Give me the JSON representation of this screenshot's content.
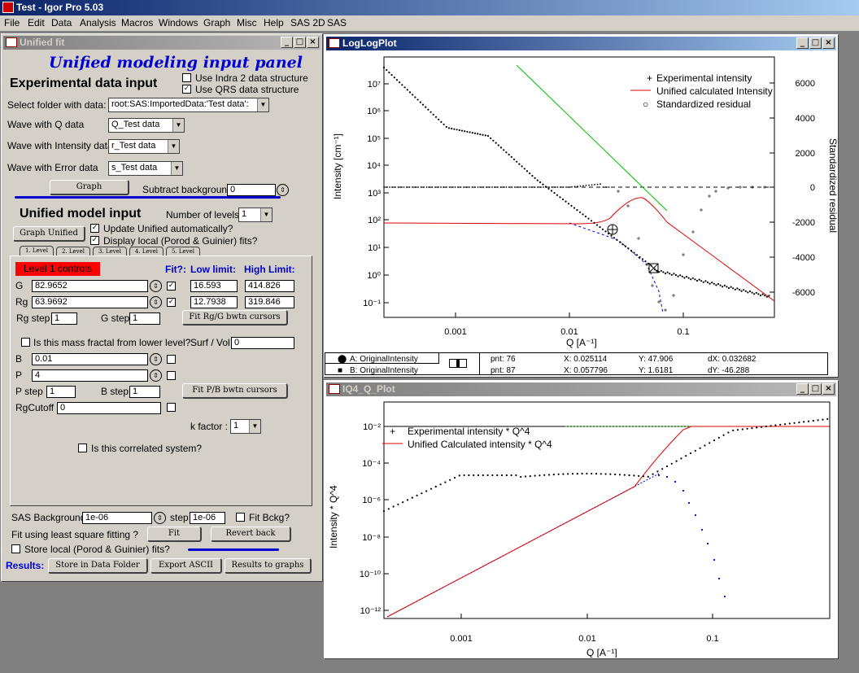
{
  "app": {
    "title": "Test - Igor Pro 5.03"
  },
  "menu": [
    "File",
    "Edit",
    "Data",
    "Analysis",
    "Macros",
    "Windows",
    "Graph",
    "Misc",
    "Help",
    "SAS 2D",
    "SAS"
  ],
  "panel": {
    "title": "Unified fit",
    "heading": "Unified modeling input panel",
    "exp_heading": "Experimental data input",
    "use_indra": "Use Indra 2 data structure",
    "use_qrs": "Use QRS data structure",
    "select_folder_label": "Select folder with data:",
    "folder_value": "root:SAS:ImportedData:'Test data':",
    "wave_q_label": "Wave with Q data",
    "wave_q_value": "Q_Test data",
    "wave_int_label": "Wave with Intensity data",
    "wave_int_value": "r_Test data",
    "wave_err_label": "Wave with Error data",
    "wave_err_value": "s_Test data",
    "graph_button": "Graph",
    "subtract_bg_label": "Subtract background",
    "subtract_bg_value": "0",
    "model_heading": "Unified model input",
    "num_levels_label": "Number of levels :",
    "num_levels_value": "1",
    "graph_unified_button": "Graph Unified",
    "update_auto": "Update Unified automatically?",
    "display_local": "Display local (Porod & Guinier) fits?",
    "tabs": [
      "1. Level",
      "2. Level",
      "3. Level",
      "4. Level",
      "5. Level"
    ],
    "level_controls": "Level  1 controls",
    "fit_hdr": "Fit?:",
    "low_hdr": "Low limit:",
    "high_hdr": "High Limit:",
    "g_label": "G",
    "g_value": "82.9652",
    "g_low": "16.593",
    "g_high": "414.826",
    "rg_label": "Rg",
    "rg_value": "63.9692",
    "rg_low": "12.7938",
    "rg_high": "319.846",
    "rg_step_label": "Rg step",
    "rg_step": "1",
    "g_step_label": "G step",
    "g_step": "1",
    "fit_rg_g": "Fit Rg/G bwtn cursors",
    "mass_fractal": "Is this mass fractal from lower level?",
    "surf_vol_label": "Surf / Vol",
    "surf_vol_value": "0",
    "b_label": "B",
    "b_value": "0.01",
    "p_label": "P",
    "p_value": "4",
    "p_step_label": "P step",
    "p_step": "1",
    "b_step_label": "B step",
    "b_step": "1",
    "fit_p_b": "Fit P/B bwtn cursors",
    "rgcutoff_label": "RgCutoff",
    "rgcutoff_value": "0",
    "kfactor_label": "k factor :",
    "kfactor_value": "1",
    "correlated": "Is this correlated system?",
    "sas_bg_label": "SAS Background",
    "sas_bg_value": "1e-06",
    "step_label": "step",
    "step_value": "1e-06",
    "fit_bckg": "Fit Bckg?",
    "fit_lsq_label": "Fit using least square fitting ?",
    "fit_button": "Fit",
    "revert_button": "Revert back",
    "store_local": "Store local (Porod & Guinier) fits?",
    "results_label": "Results:",
    "store_button": "Store in Data Folder",
    "export_button": "Export ASCII",
    "results_graphs_button": "Results to graphs"
  },
  "loglog": {
    "title": "LogLogPlot",
    "legend": [
      "Experimental intensity",
      "Unified calculated Intensity",
      "Standardized residual"
    ],
    "legend_symbols": [
      "+",
      "",
      "○"
    ],
    "ylabel": "Intensity [cm⁻¹]",
    "y2label": "Standardized residual",
    "xlabel": "Q [A⁻¹]",
    "xticks": [
      "0.001",
      "0.01",
      "0.1"
    ],
    "yticks": [
      "10⁷",
      "10⁶",
      "10⁵",
      "10⁴",
      "10³",
      "10²",
      "10¹",
      "10⁰",
      "10⁻¹"
    ],
    "y2ticks": [
      "6000",
      "4000",
      "2000",
      "0",
      "-2000",
      "-4000",
      "-6000"
    ]
  },
  "cursor_info": {
    "a_label": "A: OriginalIntensity",
    "b_label": "B: OriginalIntensity",
    "a_pnt": "pnt: 76",
    "b_pnt": "pnt: 87",
    "a_x": "X: 0.025114",
    "b_x": "X: 0.057796",
    "a_y": "Y: 47.906",
    "b_y": "Y: 1.6181",
    "dx": "dX: 0.032682",
    "dy": "dY: -46.288"
  },
  "iq4": {
    "title": "IQ4_Q_Plot",
    "legend": [
      "Experimental intensity * Q^4",
      "Unified Calculated intensity * Q^4"
    ],
    "ylabel": "Intensity * Q^4",
    "xlabel": "Q [A⁻¹]",
    "xticks": [
      "0.001",
      "0.01",
      "0.1"
    ],
    "yticks": [
      "10⁻²",
      "10⁻⁴",
      "10⁻⁶",
      "10⁻⁸",
      "10⁻¹⁰",
      "10⁻¹²"
    ]
  },
  "colors": {
    "accent": "#0000d0",
    "fit_line": "#e00000",
    "local_fit": "#00c000",
    "residual": "#000000",
    "level_box": "#ff0000"
  }
}
